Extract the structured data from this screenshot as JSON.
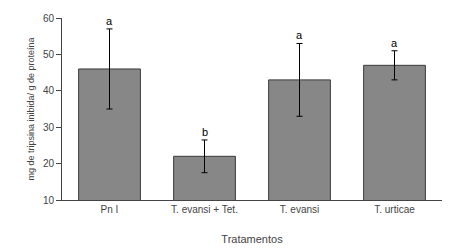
{
  "chart_data": {
    "type": "bar",
    "categories": [
      "Pn I",
      "T. evansi + Tet.",
      "T. evansi",
      "T. urticae"
    ],
    "values": [
      46.0,
      22.0,
      43.0,
      47.0
    ],
    "errors": [
      11.0,
      4.5,
      10.0,
      4.0
    ],
    "color": "#878787",
    "xlabel": "Tratamentos",
    "ylabel": "mg de tripsina inibida/ g de proteína",
    "ylim": [
      10,
      60
    ],
    "yticks": [
      10,
      20,
      30,
      40,
      50,
      60
    ],
    "annotations": [
      {
        "x": "Pn I",
        "text": "a"
      },
      {
        "x": "T. evansi + Tet.",
        "text": "b"
      },
      {
        "x": "T. evansi",
        "text": "a"
      },
      {
        "x": "T. urticae",
        "text": "a"
      }
    ],
    "grid": false
  }
}
